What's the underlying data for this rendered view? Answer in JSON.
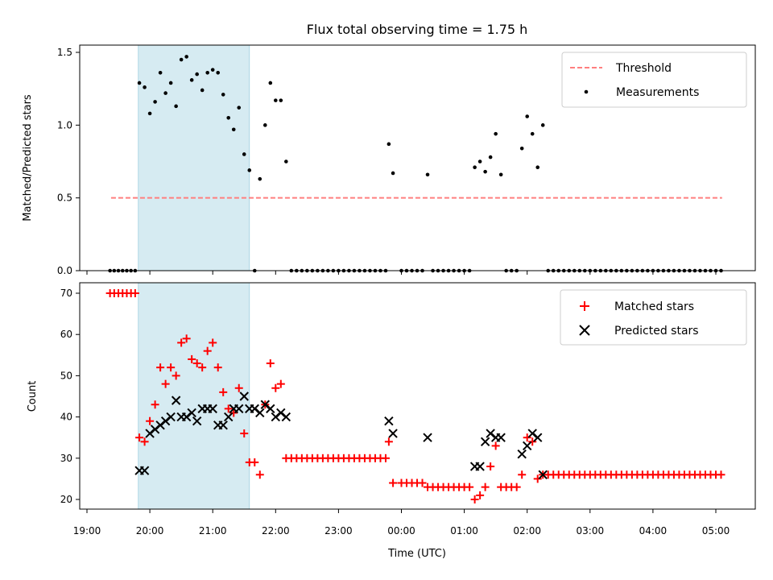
{
  "chart_data": {
    "title": "Flux total observing time = 1.75 h",
    "xlabel": "Time (UTC)",
    "type": "scatter",
    "shaded_region": {
      "x0": "19:49",
      "x1": "21:35",
      "color": "#add8e6"
    },
    "x_ticks": [
      "19:00",
      "20:00",
      "21:00",
      "22:00",
      "23:00",
      "00:00",
      "01:00",
      "02:00",
      "03:00",
      "04:00",
      "05:00"
    ],
    "top": {
      "ylabel": "Matched/Predicted stars",
      "ylim": [
        0,
        1.55
      ],
      "y_ticks": [
        "0.0",
        "0.5",
        "1.0",
        "1.5"
      ],
      "legend": {
        "position": "top-right",
        "entries": [
          "Threshold",
          "Measurements"
        ]
      },
      "threshold": {
        "name": "Threshold",
        "value": 0.5,
        "x_start": "19:23",
        "x_end": "05:06",
        "color": "#ff7f7f",
        "style": "dashed"
      },
      "measurements": {
        "name": "Measurements",
        "color": "#000000",
        "points": [
          [
            "19:22",
            0
          ],
          [
            "19:26",
            0
          ],
          [
            "19:30",
            0
          ],
          [
            "19:34",
            0
          ],
          [
            "19:38",
            0
          ],
          [
            "19:42",
            0
          ],
          [
            "19:46",
            0
          ],
          [
            "19:50",
            1.29
          ],
          [
            "19:55",
            1.26
          ],
          [
            "20:00",
            1.08
          ],
          [
            "20:05",
            1.16
          ],
          [
            "20:10",
            1.36
          ],
          [
            "20:15",
            1.22
          ],
          [
            "20:20",
            1.29
          ],
          [
            "20:25",
            1.13
          ],
          [
            "20:30",
            1.45
          ],
          [
            "20:35",
            1.47
          ],
          [
            "20:40",
            1.31
          ],
          [
            "20:45",
            1.35
          ],
          [
            "20:50",
            1.24
          ],
          [
            "20:55",
            1.36
          ],
          [
            "21:00",
            1.38
          ],
          [
            "21:05",
            1.36
          ],
          [
            "21:10",
            1.21
          ],
          [
            "21:15",
            1.05
          ],
          [
            "21:20",
            0.97
          ],
          [
            "21:25",
            1.12
          ],
          [
            "21:30",
            0.8
          ],
          [
            "21:35",
            0.69
          ],
          [
            "21:40",
            0
          ],
          [
            "21:45",
            0.63
          ],
          [
            "21:50",
            1.0
          ],
          [
            "21:55",
            1.29
          ],
          [
            "22:00",
            1.17
          ],
          [
            "22:05",
            1.17
          ],
          [
            "22:10",
            0.75
          ],
          [
            "22:15",
            0
          ],
          [
            "22:20",
            0
          ],
          [
            "22:25",
            0
          ],
          [
            "22:30",
            0
          ],
          [
            "22:35",
            0
          ],
          [
            "22:40",
            0
          ],
          [
            "22:45",
            0
          ],
          [
            "22:50",
            0
          ],
          [
            "22:55",
            0
          ],
          [
            "23:00",
            0
          ],
          [
            "23:05",
            0
          ],
          [
            "23:10",
            0
          ],
          [
            "23:15",
            0
          ],
          [
            "23:20",
            0
          ],
          [
            "23:25",
            0
          ],
          [
            "23:30",
            0
          ],
          [
            "23:35",
            0
          ],
          [
            "23:40",
            0
          ],
          [
            "23:45",
            0
          ],
          [
            "23:48",
            0.87
          ],
          [
            "23:52",
            0.67
          ],
          [
            "24:00",
            0
          ],
          [
            "24:05",
            0
          ],
          [
            "24:10",
            0
          ],
          [
            "24:15",
            0
          ],
          [
            "24:20",
            0
          ],
          [
            "24:25",
            0.66
          ],
          [
            "24:30",
            0
          ],
          [
            "24:35",
            0
          ],
          [
            "24:40",
            0
          ],
          [
            "24:45",
            0
          ],
          [
            "24:50",
            0
          ],
          [
            "24:55",
            0
          ],
          [
            "25:00",
            0
          ],
          [
            "25:05",
            0
          ],
          [
            "25:10",
            0.71
          ],
          [
            "25:15",
            0.75
          ],
          [
            "25:20",
            0.68
          ],
          [
            "25:25",
            0.78
          ],
          [
            "25:30",
            0.94
          ],
          [
            "25:35",
            0.66
          ],
          [
            "25:40",
            0
          ],
          [
            "25:45",
            0
          ],
          [
            "25:50",
            0
          ],
          [
            "25:55",
            0.84
          ],
          [
            "26:00",
            1.06
          ],
          [
            "26:05",
            0.94
          ],
          [
            "26:10",
            0.71
          ],
          [
            "26:15",
            1.0
          ],
          [
            "26:20",
            0
          ],
          [
            "26:25",
            0
          ],
          [
            "26:30",
            0
          ],
          [
            "26:35",
            0
          ],
          [
            "26:40",
            0
          ],
          [
            "26:45",
            0
          ],
          [
            "26:50",
            0
          ],
          [
            "26:55",
            0
          ],
          [
            "27:00",
            0
          ],
          [
            "27:05",
            0
          ],
          [
            "27:10",
            0
          ],
          [
            "27:15",
            0
          ],
          [
            "27:20",
            0
          ],
          [
            "27:25",
            0
          ],
          [
            "27:30",
            0
          ],
          [
            "27:35",
            0
          ],
          [
            "27:40",
            0
          ],
          [
            "27:45",
            0
          ],
          [
            "27:50",
            0
          ],
          [
            "27:55",
            0
          ],
          [
            "28:00",
            0
          ],
          [
            "28:05",
            0
          ],
          [
            "28:10",
            0
          ],
          [
            "28:15",
            0
          ],
          [
            "28:20",
            0
          ],
          [
            "28:25",
            0
          ],
          [
            "28:30",
            0
          ],
          [
            "28:35",
            0
          ],
          [
            "28:40",
            0
          ],
          [
            "28:45",
            0
          ],
          [
            "28:50",
            0
          ],
          [
            "28:55",
            0
          ],
          [
            "29:00",
            0
          ],
          [
            "29:05",
            0
          ]
        ]
      }
    },
    "bottom": {
      "ylabel": "Count",
      "ylim": [
        17.5,
        72.5
      ],
      "y_ticks": [
        "20",
        "30",
        "40",
        "50",
        "60",
        "70"
      ],
      "legend": {
        "position": "top-right",
        "entries": [
          "Matched stars",
          "Predicted stars"
        ]
      },
      "matched": {
        "name": "Matched stars",
        "color": "#ff0000",
        "marker": "+",
        "points": [
          [
            "19:22",
            70
          ],
          [
            "19:26",
            70
          ],
          [
            "19:30",
            70
          ],
          [
            "19:34",
            70
          ],
          [
            "19:38",
            70
          ],
          [
            "19:42",
            70
          ],
          [
            "19:46",
            70
          ],
          [
            "19:50",
            35
          ],
          [
            "19:55",
            34
          ],
          [
            "20:00",
            39
          ],
          [
            "20:05",
            43
          ],
          [
            "20:10",
            52
          ],
          [
            "20:15",
            48
          ],
          [
            "20:20",
            52
          ],
          [
            "20:25",
            50
          ],
          [
            "20:30",
            58
          ],
          [
            "20:35",
            59
          ],
          [
            "20:40",
            54
          ],
          [
            "20:45",
            53
          ],
          [
            "20:50",
            52
          ],
          [
            "20:55",
            56
          ],
          [
            "21:00",
            58
          ],
          [
            "21:05",
            52
          ],
          [
            "21:10",
            46
          ],
          [
            "21:15",
            42
          ],
          [
            "21:20",
            41
          ],
          [
            "21:25",
            47
          ],
          [
            "21:30",
            36
          ],
          [
            "21:35",
            29
          ],
          [
            "21:40",
            29
          ],
          [
            "21:45",
            26
          ],
          [
            "21:50",
            43
          ],
          [
            "21:55",
            53
          ],
          [
            "22:00",
            47
          ],
          [
            "22:05",
            48
          ],
          [
            "22:10",
            30
          ],
          [
            "22:15",
            30
          ],
          [
            "22:20",
            30
          ],
          [
            "22:25",
            30
          ],
          [
            "22:30",
            30
          ],
          [
            "22:35",
            30
          ],
          [
            "22:40",
            30
          ],
          [
            "22:45",
            30
          ],
          [
            "22:50",
            30
          ],
          [
            "22:55",
            30
          ],
          [
            "23:00",
            30
          ],
          [
            "23:05",
            30
          ],
          [
            "23:10",
            30
          ],
          [
            "23:15",
            30
          ],
          [
            "23:20",
            30
          ],
          [
            "23:25",
            30
          ],
          [
            "23:30",
            30
          ],
          [
            "23:35",
            30
          ],
          [
            "23:40",
            30
          ],
          [
            "23:45",
            30
          ],
          [
            "23:48",
            34
          ],
          [
            "23:52",
            24
          ],
          [
            "24:00",
            24
          ],
          [
            "24:05",
            24
          ],
          [
            "24:10",
            24
          ],
          [
            "24:15",
            24
          ],
          [
            "24:20",
            24
          ],
          [
            "24:25",
            23
          ],
          [
            "24:30",
            23
          ],
          [
            "24:35",
            23
          ],
          [
            "24:40",
            23
          ],
          [
            "24:45",
            23
          ],
          [
            "24:50",
            23
          ],
          [
            "24:55",
            23
          ],
          [
            "25:00",
            23
          ],
          [
            "25:05",
            23
          ],
          [
            "25:10",
            20
          ],
          [
            "25:15",
            21
          ],
          [
            "25:20",
            23
          ],
          [
            "25:25",
            28
          ],
          [
            "25:30",
            33
          ],
          [
            "25:35",
            23
          ],
          [
            "25:40",
            23
          ],
          [
            "25:45",
            23
          ],
          [
            "25:50",
            23
          ],
          [
            "25:55",
            26
          ],
          [
            "26:00",
            35
          ],
          [
            "26:05",
            34
          ],
          [
            "26:10",
            25
          ],
          [
            "26:15",
            26
          ],
          [
            "26:20",
            26
          ],
          [
            "26:25",
            26
          ],
          [
            "26:30",
            26
          ],
          [
            "26:35",
            26
          ],
          [
            "26:40",
            26
          ],
          [
            "26:45",
            26
          ],
          [
            "26:50",
            26
          ],
          [
            "26:55",
            26
          ],
          [
            "27:00",
            26
          ],
          [
            "27:05",
            26
          ],
          [
            "27:10",
            26
          ],
          [
            "27:15",
            26
          ],
          [
            "27:20",
            26
          ],
          [
            "27:25",
            26
          ],
          [
            "27:30",
            26
          ],
          [
            "27:35",
            26
          ],
          [
            "27:40",
            26
          ],
          [
            "27:45",
            26
          ],
          [
            "27:50",
            26
          ],
          [
            "27:55",
            26
          ],
          [
            "28:00",
            26
          ],
          [
            "28:05",
            26
          ],
          [
            "28:10",
            26
          ],
          [
            "28:15",
            26
          ],
          [
            "28:20",
            26
          ],
          [
            "28:25",
            26
          ],
          [
            "28:30",
            26
          ],
          [
            "28:35",
            26
          ],
          [
            "28:40",
            26
          ],
          [
            "28:45",
            26
          ],
          [
            "28:50",
            26
          ],
          [
            "28:55",
            26
          ],
          [
            "29:00",
            26
          ],
          [
            "29:05",
            26
          ]
        ]
      },
      "predicted": {
        "name": "Predicted stars",
        "color": "#000000",
        "marker": "x",
        "points": [
          [
            "19:50",
            27
          ],
          [
            "19:55",
            27
          ],
          [
            "20:00",
            36
          ],
          [
            "20:05",
            37
          ],
          [
            "20:10",
            38
          ],
          [
            "20:15",
            39
          ],
          [
            "20:20",
            40
          ],
          [
            "20:25",
            44
          ],
          [
            "20:30",
            40
          ],
          [
            "20:35",
            40
          ],
          [
            "20:40",
            41
          ],
          [
            "20:45",
            39
          ],
          [
            "20:50",
            42
          ],
          [
            "20:55",
            42
          ],
          [
            "21:00",
            42
          ],
          [
            "21:05",
            38
          ],
          [
            "21:10",
            38
          ],
          [
            "21:15",
            40
          ],
          [
            "21:20",
            42
          ],
          [
            "21:25",
            42
          ],
          [
            "21:30",
            45
          ],
          [
            "21:35",
            42
          ],
          [
            "21:40",
            42
          ],
          [
            "21:45",
            41
          ],
          [
            "21:50",
            43
          ],
          [
            "21:55",
            42
          ],
          [
            "22:00",
            40
          ],
          [
            "22:05",
            41
          ],
          [
            "22:10",
            40
          ],
          [
            "23:48",
            39
          ],
          [
            "23:52",
            36
          ],
          [
            "24:25",
            35
          ],
          [
            "25:10",
            28
          ],
          [
            "25:15",
            28
          ],
          [
            "25:20",
            34
          ],
          [
            "25:25",
            36
          ],
          [
            "25:30",
            35
          ],
          [
            "25:35",
            35
          ],
          [
            "25:55",
            31
          ],
          [
            "26:00",
            33
          ],
          [
            "26:05",
            36
          ],
          [
            "26:10",
            35
          ],
          [
            "26:15",
            26
          ]
        ]
      }
    }
  }
}
